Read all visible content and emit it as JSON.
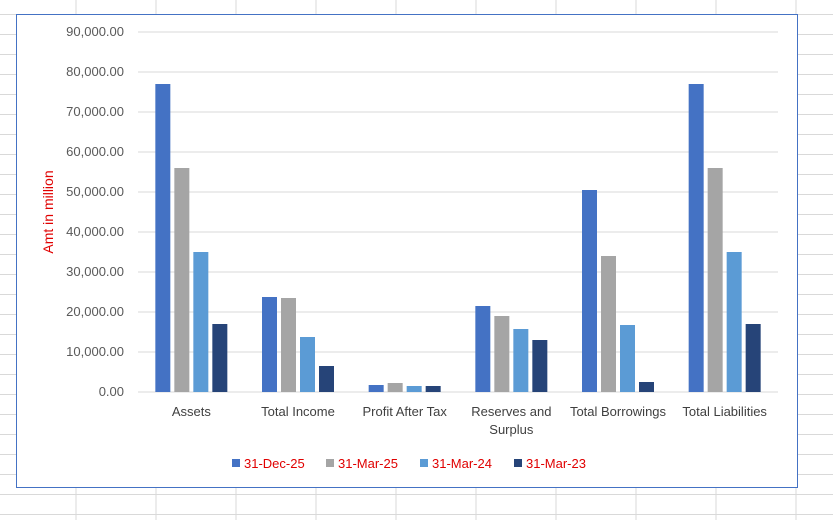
{
  "chart_data": {
    "type": "bar",
    "title": "",
    "xlabel": "",
    "ylabel": "Amt in million",
    "ylim": [
      0,
      90000
    ],
    "ytick_step": 10000,
    "yticks": [
      "0.00",
      "10,000.00",
      "20,000.00",
      "30,000.00",
      "40,000.00",
      "50,000.00",
      "60,000.00",
      "70,000.00",
      "80,000.00",
      "90,000.00"
    ],
    "grid": true,
    "legend_position": "bottom",
    "categories": [
      "Assets",
      "Total Income",
      "Profit After Tax",
      "Reserves and Surplus",
      "Total Borrowings",
      "Total Liabilities"
    ],
    "series": [
      {
        "name": "31-Dec-25",
        "color": "#4472c4",
        "values": [
          77000,
          23750,
          1750,
          21500,
          50500,
          77000
        ]
      },
      {
        "name": "31-Mar-25",
        "color": "#a5a5a5",
        "values": [
          56000,
          23500,
          2250,
          19000,
          34000,
          56000
        ]
      },
      {
        "name": "31-Mar-24",
        "color": "#5b9bd5",
        "values": [
          35000,
          13750,
          1500,
          15750,
          16750,
          35000
        ]
      },
      {
        "name": "31-Mar-23",
        "color": "#264478",
        "values": [
          17000,
          6500,
          1500,
          13000,
          2500,
          17000
        ]
      }
    ],
    "label_color": "#e00000"
  }
}
